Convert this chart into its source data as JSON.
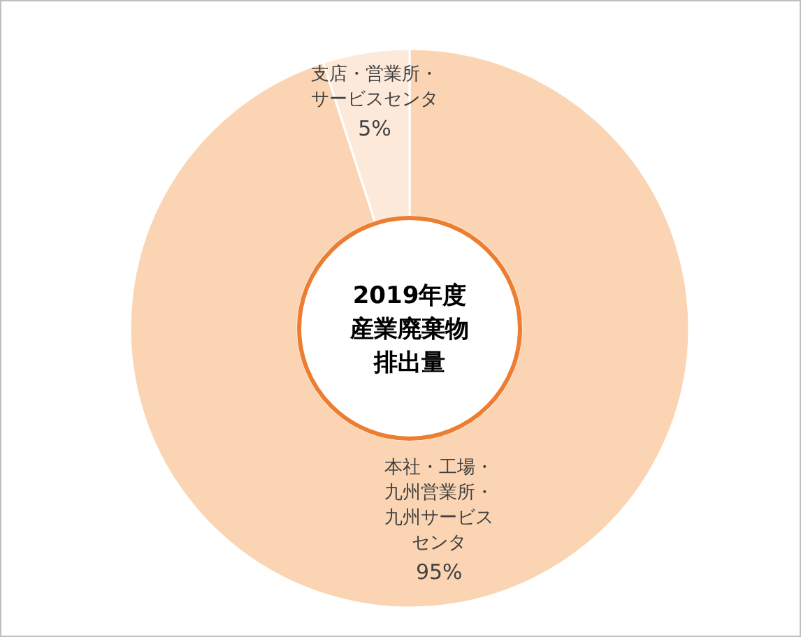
{
  "chart_data": {
    "type": "donut",
    "title": "2019年度産業廃棄物排出量",
    "categories": [
      "本社・工場・九州営業所・九州サービスセンタ",
      "支店・営業所・サービスセンタ"
    ],
    "values": [
      95,
      5
    ],
    "colors": [
      "#fbd5b3",
      "#fde9da"
    ],
    "value_labels": [
      "95%",
      "5%"
    ]
  }
}
